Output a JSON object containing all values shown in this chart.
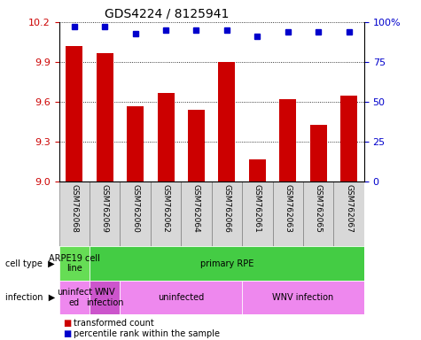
{
  "title": "GDS4224 / 8125941",
  "samples": [
    "GSM762068",
    "GSM762069",
    "GSM762060",
    "GSM762062",
    "GSM762064",
    "GSM762066",
    "GSM762061",
    "GSM762063",
    "GSM762065",
    "GSM762067"
  ],
  "transformed_count": [
    10.02,
    9.97,
    9.57,
    9.67,
    9.54,
    9.9,
    9.17,
    9.62,
    9.43,
    9.65
  ],
  "percentile_rank": [
    97,
    97,
    93,
    95,
    95,
    95,
    91,
    94,
    94,
    94
  ],
  "ylim_left": [
    9.0,
    10.2
  ],
  "ylim_right": [
    0,
    100
  ],
  "yticks_left": [
    9.0,
    9.3,
    9.6,
    9.9,
    10.2
  ],
  "yticks_right": [
    0,
    25,
    50,
    75,
    100
  ],
  "bar_color": "#cc0000",
  "dot_color": "#0000cc",
  "left_label_color": "#cc0000",
  "right_label_color": "#0000cc",
  "tick_bg_color": "#d8d8d8",
  "cell_type_colors": [
    "#66dd55",
    "#44cc44"
  ],
  "cell_type_texts": [
    "ARPE19 cell\nline",
    "primary RPE"
  ],
  "cell_type_ranges": [
    [
      0,
      1
    ],
    [
      1,
      10
    ]
  ],
  "infection_colors": [
    "#ee88ee",
    "#cc55cc",
    "#ee88ee",
    "#ee88ee"
  ],
  "infection_texts": [
    "uninfect\ned",
    "WNV\ninfection",
    "uninfected",
    "WNV infection"
  ],
  "infection_ranges": [
    [
      0,
      1
    ],
    [
      1,
      2
    ],
    [
      2,
      6
    ],
    [
      6,
      10
    ]
  ],
  "legend_texts": [
    "transformed count",
    "percentile rank within the sample"
  ],
  "legend_colors": [
    "#cc0000",
    "#0000cc"
  ]
}
